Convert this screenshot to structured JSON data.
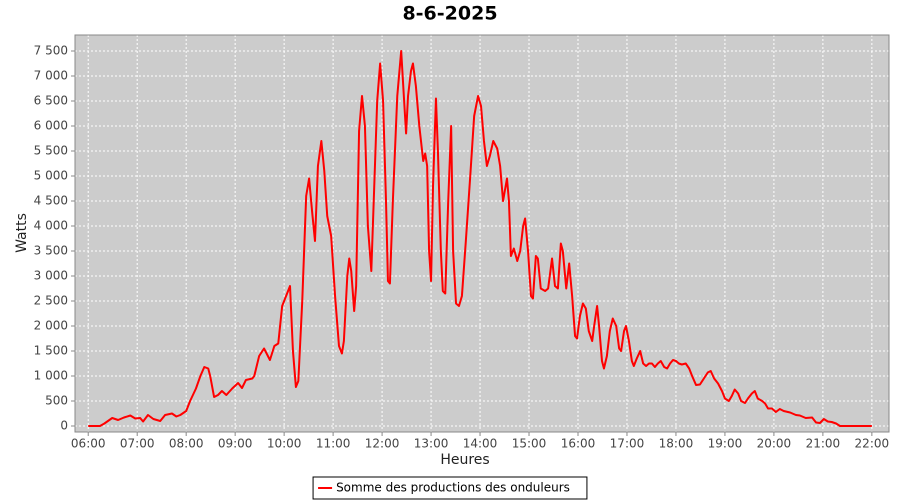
{
  "chart_data": {
    "type": "line",
    "title": "8-6-2025",
    "x_label": "Heures",
    "y_label": "Watts",
    "x": [
      6.0,
      6.24,
      6.33,
      6.49,
      6.61,
      6.73,
      6.86,
      6.96,
      7.06,
      7.12,
      7.22,
      7.33,
      7.47,
      7.57,
      7.71,
      7.8,
      7.88,
      8.0,
      8.08,
      8.2,
      8.29,
      8.37,
      8.45,
      8.49,
      8.57,
      8.65,
      8.73,
      8.82,
      8.94,
      9.06,
      9.14,
      9.22,
      9.35,
      9.39,
      9.49,
      9.59,
      9.71,
      9.8,
      9.88,
      9.96,
      10.06,
      10.12,
      10.18,
      10.24,
      10.29,
      10.37,
      10.45,
      10.51,
      10.57,
      10.63,
      10.69,
      10.76,
      10.82,
      10.88,
      10.96,
      11.04,
      11.12,
      11.18,
      11.22,
      11.29,
      11.33,
      11.37,
      11.43,
      11.47,
      11.53,
      11.59,
      11.65,
      11.71,
      11.78,
      11.84,
      11.9,
      11.96,
      12.02,
      12.08,
      12.12,
      12.16,
      12.22,
      12.31,
      12.39,
      12.45,
      12.49,
      12.53,
      12.59,
      12.63,
      12.69,
      12.76,
      12.84,
      12.88,
      12.92,
      12.96,
      13.0,
      13.04,
      13.1,
      13.14,
      13.2,
      13.24,
      13.29,
      13.35,
      13.41,
      13.45,
      13.51,
      13.57,
      13.63,
      13.71,
      13.8,
      13.88,
      13.96,
      14.02,
      14.08,
      14.14,
      14.2,
      14.27,
      14.35,
      14.41,
      14.47,
      14.55,
      14.59,
      14.63,
      14.69,
      14.76,
      14.82,
      14.88,
      14.92,
      14.98,
      15.04,
      15.08,
      15.14,
      15.18,
      15.24,
      15.33,
      15.39,
      15.47,
      15.53,
      15.59,
      15.65,
      15.69,
      15.76,
      15.82,
      15.88,
      15.94,
      15.98,
      16.04,
      16.1,
      16.16,
      16.22,
      16.29,
      16.33,
      16.39,
      16.43,
      16.49,
      16.53,
      16.59,
      16.65,
      16.71,
      16.78,
      16.84,
      16.88,
      16.94,
      16.98,
      17.04,
      17.1,
      17.14,
      17.2,
      17.27,
      17.33,
      17.39,
      17.45,
      17.51,
      17.57,
      17.63,
      17.69,
      17.76,
      17.82,
      17.88,
      17.94,
      18.0,
      18.06,
      18.12,
      18.2,
      18.27,
      18.33,
      18.41,
      18.49,
      18.57,
      18.65,
      18.71,
      18.78,
      18.86,
      18.94,
      19.0,
      19.08,
      19.14,
      19.2,
      19.27,
      19.33,
      19.41,
      19.47,
      19.55,
      19.61,
      19.67,
      19.76,
      19.82,
      19.88,
      19.96,
      20.04,
      20.12,
      20.2,
      20.33,
      20.45,
      20.53,
      20.65,
      20.78,
      20.86,
      20.94,
      21.02,
      21.1,
      21.18,
      21.27,
      21.35,
      21.55,
      22.0
    ],
    "series": [
      {
        "name": "Somme des productions des onduleurs",
        "color": "#ff0000",
        "values": [
          0,
          0,
          50,
          160,
          120,
          170,
          210,
          150,
          160,
          90,
          220,
          140,
          100,
          220,
          250,
          190,
          220,
          300,
          500,
          750,
          1000,
          1180,
          1150,
          1000,
          580,
          620,
          700,
          620,
          750,
          860,
          760,
          920,
          950,
          1000,
          1400,
          1550,
          1320,
          1600,
          1650,
          2400,
          2650,
          2800,
          1500,
          780,
          900,
          2500,
          4600,
          4950,
          4300,
          3700,
          5200,
          5700,
          5100,
          4200,
          3800,
          2600,
          1600,
          1450,
          1700,
          3000,
          3350,
          3100,
          2300,
          2800,
          5900,
          6600,
          6000,
          4000,
          3100,
          4800,
          6500,
          7250,
          6500,
          4500,
          2900,
          2850,
          4500,
          6600,
          7500,
          6500,
          5850,
          6600,
          7100,
          7250,
          6800,
          6000,
          5300,
          5450,
          5200,
          3500,
          2900,
          4800,
          6550,
          5500,
          3500,
          2700,
          2650,
          4500,
          6000,
          3500,
          2450,
          2400,
          2600,
          3700,
          5000,
          6200,
          6600,
          6400,
          5700,
          5200,
          5400,
          5700,
          5550,
          5200,
          4500,
          4950,
          4500,
          3400,
          3550,
          3300,
          3500,
          4000,
          4150,
          3500,
          2600,
          2550,
          3400,
          3350,
          2750,
          2700,
          2750,
          3350,
          2800,
          2750,
          3650,
          3500,
          2750,
          3250,
          2600,
          1800,
          1750,
          2200,
          2450,
          2350,
          1900,
          1700,
          2000,
          2400,
          2000,
          1300,
          1150,
          1400,
          1900,
          2150,
          2000,
          1550,
          1500,
          1900,
          2000,
          1700,
          1300,
          1200,
          1350,
          1500,
          1250,
          1200,
          1250,
          1250,
          1180,
          1250,
          1300,
          1180,
          1150,
          1250,
          1320,
          1300,
          1250,
          1230,
          1250,
          1150,
          1000,
          820,
          830,
          950,
          1070,
          1100,
          950,
          850,
          700,
          550,
          500,
          600,
          730,
          650,
          500,
          460,
          550,
          650,
          700,
          550,
          500,
          450,
          350,
          350,
          280,
          340,
          300,
          270,
          220,
          210,
          160,
          170,
          70,
          60,
          140,
          90,
          80,
          50,
          0,
          0,
          0
        ]
      }
    ],
    "xlim": [
      5.73,
      22.35
    ],
    "ylim": [
      -120,
      7820
    ],
    "xticks": [
      {
        "value": 6,
        "label": "06:00"
      },
      {
        "value": 7,
        "label": "07:00"
      },
      {
        "value": 8,
        "label": "08:00"
      },
      {
        "value": 9,
        "label": "09:00"
      },
      {
        "value": 10,
        "label": "10:00"
      },
      {
        "value": 11,
        "label": "11:00"
      },
      {
        "value": 12,
        "label": "12:00"
      },
      {
        "value": 13,
        "label": "13:00"
      },
      {
        "value": 14,
        "label": "14:00"
      },
      {
        "value": 15,
        "label": "15:00"
      },
      {
        "value": 16,
        "label": "16:00"
      },
      {
        "value": 17,
        "label": "17:00"
      },
      {
        "value": 18,
        "label": "18:00"
      },
      {
        "value": 19,
        "label": "19:00"
      },
      {
        "value": 20,
        "label": "20:00"
      },
      {
        "value": 21,
        "label": "21:00"
      },
      {
        "value": 22,
        "label": "22:00"
      }
    ],
    "yticks": [
      0,
      500,
      {
        "value": 1000,
        "label": "1 000"
      },
      {
        "value": 1500,
        "label": "1 500"
      },
      {
        "value": 2000,
        "label": "2 000"
      },
      {
        "value": 2500,
        "label": "2 500"
      },
      {
        "value": 3000,
        "label": "3 000"
      },
      {
        "value": 3500,
        "label": "3 500"
      },
      {
        "value": 4000,
        "label": "4 000"
      },
      {
        "value": 4500,
        "label": "4 500"
      },
      {
        "value": 5000,
        "label": "5 000"
      },
      {
        "value": 5500,
        "label": "5 500"
      },
      {
        "value": 6000,
        "label": "6 000"
      },
      {
        "value": 6500,
        "label": "6 500"
      },
      {
        "value": 7000,
        "label": "7 000"
      },
      {
        "value": 7500,
        "label": "7 500"
      }
    ],
    "grid": true,
    "background": "#cccccc",
    "legend": "bottom"
  }
}
